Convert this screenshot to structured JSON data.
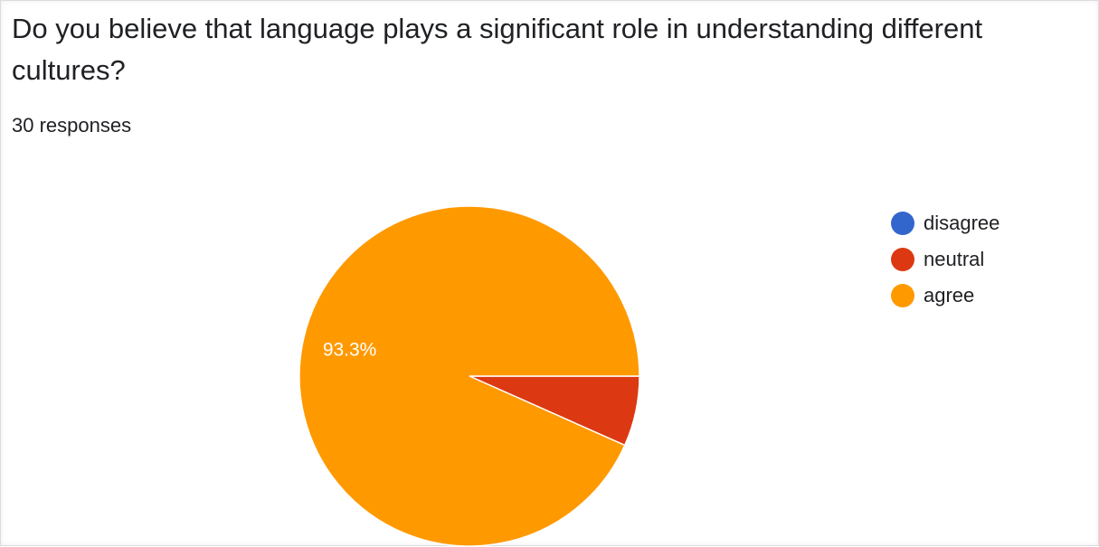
{
  "question": {
    "title": "Do you believe that language plays a significant role in understanding different cultures?",
    "responses_label": "30 responses"
  },
  "chart_data": {
    "type": "pie",
    "total_responses": 30,
    "legend_position": "right",
    "series": [
      {
        "name": "disagree",
        "count": 0,
        "percent": 0,
        "color": "#3366cc",
        "label": ""
      },
      {
        "name": "neutral",
        "count": 2,
        "percent": 6.7,
        "color": "#dc3912",
        "label": ""
      },
      {
        "name": "agree",
        "count": 28,
        "percent": 93.3,
        "color": "#ff9900",
        "label": "93.3%"
      }
    ]
  }
}
